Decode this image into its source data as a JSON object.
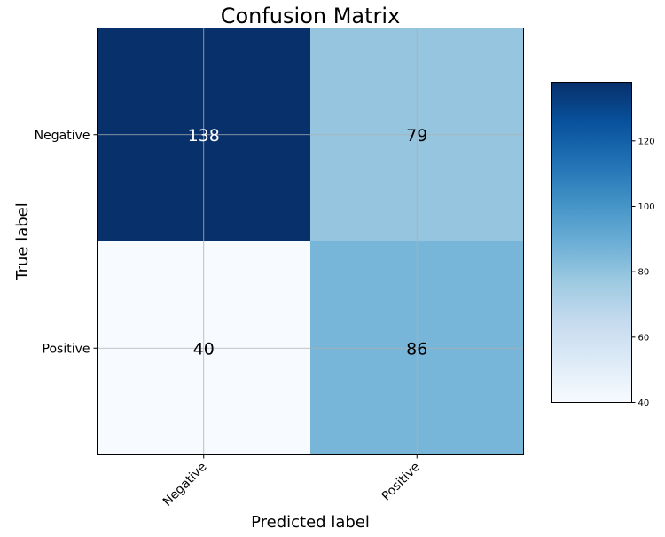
{
  "chart_data": {
    "type": "heatmap",
    "title": "Confusion Matrix",
    "xlabel": "Predicted label",
    "ylabel": "True label",
    "x_categories": [
      "Negative",
      "Positive"
    ],
    "y_categories": [
      "Negative",
      "Positive"
    ],
    "values": [
      [
        138,
        79
      ],
      [
        40,
        86
      ]
    ],
    "colormap": "Blues",
    "color_range": [
      40,
      138
    ],
    "colorbar_ticks": [
      40,
      60,
      80,
      100,
      120
    ],
    "grid": true,
    "colorbar_position": "right"
  }
}
